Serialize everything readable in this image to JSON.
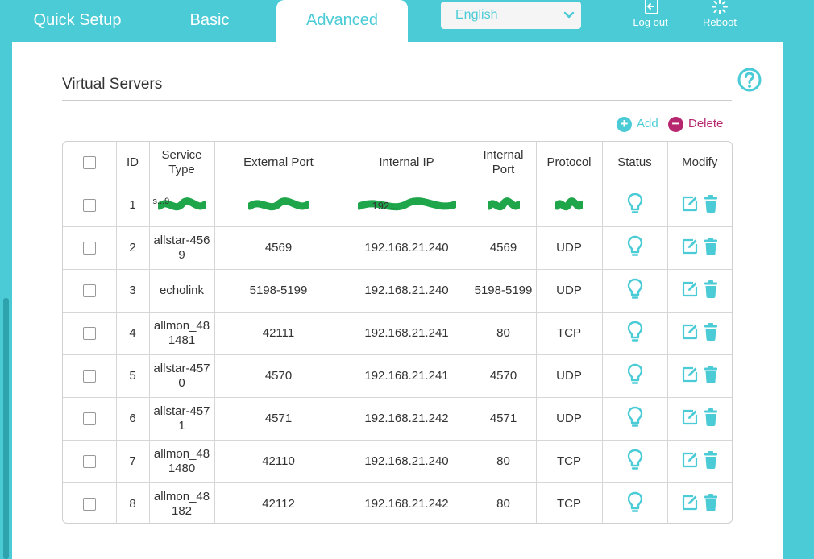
{
  "nav": {
    "tabs": [
      "Quick Setup",
      "Basic",
      "Advanced"
    ],
    "active_tab": "Advanced",
    "language": "English",
    "logout_label": "Log out",
    "reboot_label": "Reboot"
  },
  "colors": {
    "accent": "#4acbd6",
    "delete": "#b7276f",
    "text": "#333333",
    "redaction": "#1fa64a"
  },
  "section": {
    "title": "Virtual Servers",
    "add_label": "Add",
    "delete_label": "Delete"
  },
  "table": {
    "headers": [
      "",
      "ID",
      "Service Type",
      "External Port",
      "Internal IP",
      "Internal Port",
      "Protocol",
      "Status",
      "Modify"
    ],
    "rows": [
      {
        "id": "1",
        "service_type": "s...9",
        "external_port": "",
        "internal_ip": "192...",
        "internal_port": "",
        "protocol": "",
        "redacted": true
      },
      {
        "id": "2",
        "service_type": "allstar-4569",
        "external_port": "4569",
        "internal_ip": "192.168.21.240",
        "internal_port": "4569",
        "protocol": "UDP"
      },
      {
        "id": "3",
        "service_type": "echolink",
        "external_port": "5198-5199",
        "internal_ip": "192.168.21.240",
        "internal_port": "5198-5199",
        "protocol": "UDP"
      },
      {
        "id": "4",
        "service_type": "allmon_481481",
        "external_port": "42111",
        "internal_ip": "192.168.21.241",
        "internal_port": "80",
        "protocol": "TCP"
      },
      {
        "id": "5",
        "service_type": "allstar-4570",
        "external_port": "4570",
        "internal_ip": "192.168.21.241",
        "internal_port": "4570",
        "protocol": "UDP"
      },
      {
        "id": "6",
        "service_type": "allstar-4571",
        "external_port": "4571",
        "internal_ip": "192.168.21.242",
        "internal_port": "4571",
        "protocol": "UDP"
      },
      {
        "id": "7",
        "service_type": "allmon_481480",
        "external_port": "42110",
        "internal_ip": "192.168.21.240",
        "internal_port": "80",
        "protocol": "TCP"
      },
      {
        "id": "8",
        "service_type": "allmon_48182",
        "external_port": "42112",
        "internal_ip": "192.168.21.242",
        "internal_port": "80",
        "protocol": "TCP"
      }
    ]
  },
  "icons": {
    "status": "lightbulb-icon",
    "edit": "edit-icon",
    "delete": "trash-icon",
    "help": "help-icon"
  }
}
